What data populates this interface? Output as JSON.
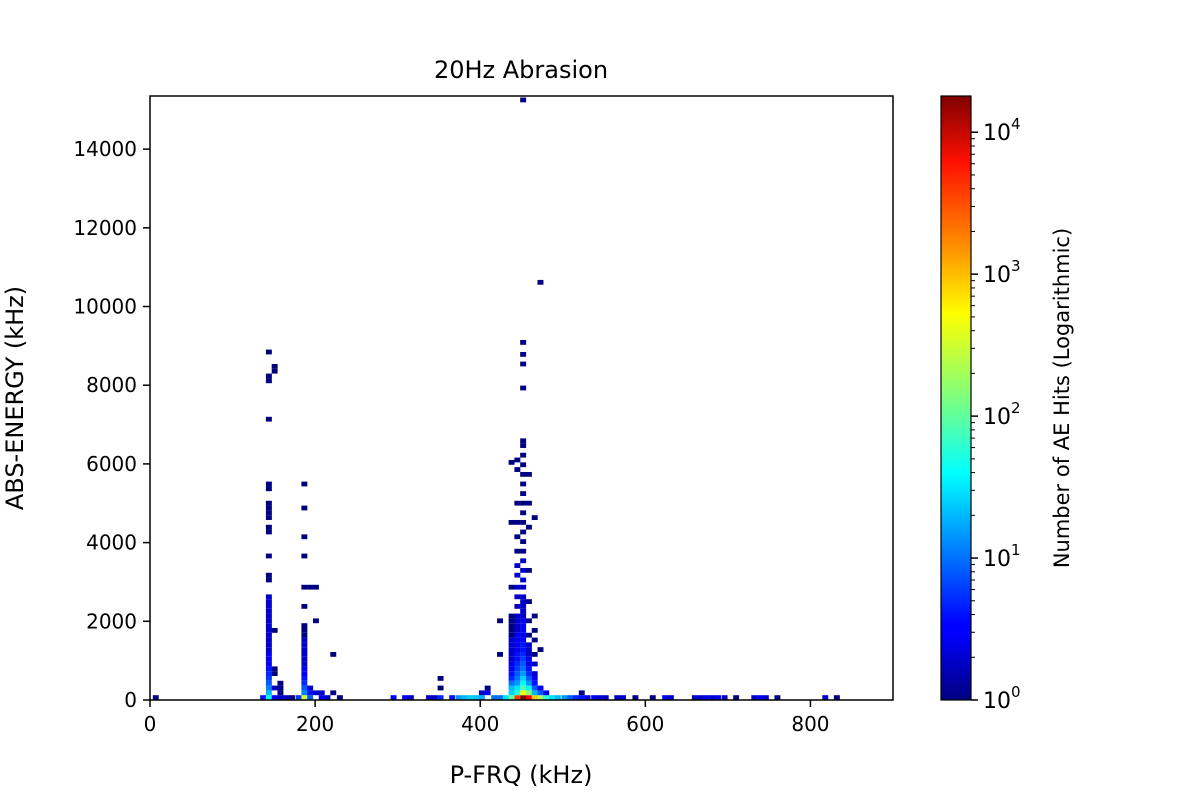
{
  "chart_data": {
    "type": "heatmap",
    "title": "20Hz Abrasion",
    "xlabel": "P-FRQ (kHz)",
    "ylabel": "ABS-ENERGY (kHz)",
    "xlim": [
      0,
      900
    ],
    "ylim": [
      0,
      15350
    ],
    "xticks": [
      0,
      200,
      400,
      600,
      800
    ],
    "yticks": [
      0,
      2000,
      4000,
      6000,
      8000,
      10000,
      12000,
      14000
    ],
    "grid": false,
    "bin_width_x": 7.2,
    "bin_height_y": 122,
    "colorscale": "jet",
    "colorbar": {
      "label": "Number of AE Hits (Logarithmic)",
      "scale": "log",
      "range": [
        1,
        18000
      ],
      "ticks": [
        {
          "value": 1,
          "base": "10",
          "exp": "0"
        },
        {
          "value": 10,
          "base": "10",
          "exp": "1"
        },
        {
          "value": 100,
          "base": "10",
          "exp": "2"
        },
        {
          "value": 1000,
          "base": "10",
          "exp": "3"
        },
        {
          "value": 10000,
          "base": "10",
          "exp": "4"
        }
      ]
    },
    "cells": [
      [
        7,
        61,
        1
      ],
      [
        137,
        61,
        4
      ],
      [
        144,
        61,
        40
      ],
      [
        151,
        61,
        3
      ],
      [
        158,
        61,
        2
      ],
      [
        144,
        183,
        20
      ],
      [
        144,
        305,
        12
      ],
      [
        144,
        427,
        8
      ],
      [
        144,
        549,
        6
      ],
      [
        144,
        671,
        5
      ],
      [
        144,
        793,
        4
      ],
      [
        144,
        915,
        3
      ],
      [
        144,
        1037,
        3
      ],
      [
        144,
        1159,
        3
      ],
      [
        144,
        1281,
        2
      ],
      [
        144,
        1403,
        2
      ],
      [
        144,
        1525,
        2
      ],
      [
        144,
        1647,
        2
      ],
      [
        144,
        1769,
        2
      ],
      [
        144,
        1891,
        2
      ],
      [
        144,
        2013,
        2
      ],
      [
        144,
        2135,
        2
      ],
      [
        144,
        2257,
        2
      ],
      [
        144,
        2379,
        2
      ],
      [
        144,
        2501,
        2
      ],
      [
        144,
        2623,
        2
      ],
      [
        144,
        3050,
        1
      ],
      [
        144,
        3172,
        1
      ],
      [
        144,
        3660,
        1
      ],
      [
        144,
        4270,
        1
      ],
      [
        144,
        4392,
        1
      ],
      [
        144,
        4636,
        1
      ],
      [
        144,
        4758,
        1
      ],
      [
        144,
        4880,
        1
      ],
      [
        144,
        5002,
        1
      ],
      [
        144,
        5368,
        1
      ],
      [
        144,
        5490,
        1
      ],
      [
        144,
        7136,
        1
      ],
      [
        144,
        8112,
        1
      ],
      [
        144,
        8234,
        1
      ],
      [
        144,
        8844,
        1
      ],
      [
        151,
        305,
        2
      ],
      [
        151,
        671,
        1
      ],
      [
        151,
        793,
        1
      ],
      [
        151,
        1769,
        1
      ],
      [
        151,
        8356,
        1
      ],
      [
        151,
        8478,
        1
      ],
      [
        158,
        183,
        1
      ],
      [
        158,
        305,
        1
      ],
      [
        158,
        427,
        1
      ],
      [
        165,
        61,
        2
      ],
      [
        172,
        61,
        1
      ],
      [
        180,
        61,
        6
      ],
      [
        187,
        61,
        300
      ],
      [
        194,
        61,
        8
      ],
      [
        187,
        183,
        12
      ],
      [
        187,
        305,
        8
      ],
      [
        187,
        427,
        5
      ],
      [
        187,
        549,
        4
      ],
      [
        187,
        671,
        3
      ],
      [
        187,
        793,
        3
      ],
      [
        187,
        915,
        2
      ],
      [
        187,
        1037,
        2
      ],
      [
        187,
        1159,
        2
      ],
      [
        187,
        1281,
        2
      ],
      [
        187,
        1403,
        2
      ],
      [
        187,
        1525,
        2
      ],
      [
        187,
        1647,
        1
      ],
      [
        187,
        1769,
        1
      ],
      [
        187,
        1891,
        1
      ],
      [
        187,
        2379,
        1
      ],
      [
        187,
        2867,
        1
      ],
      [
        187,
        3660,
        1
      ],
      [
        187,
        4148,
        1
      ],
      [
        187,
        4880,
        1
      ],
      [
        187,
        5490,
        1
      ],
      [
        194,
        183,
        4
      ],
      [
        194,
        305,
        2
      ],
      [
        194,
        2867,
        1
      ],
      [
        201,
        183,
        2
      ],
      [
        201,
        2867,
        1
      ],
      [
        201,
        2013,
        1
      ],
      [
        208,
        61,
        3
      ],
      [
        208,
        183,
        2
      ],
      [
        215,
        61,
        2
      ],
      [
        222,
        183,
        1
      ],
      [
        222,
        1159,
        1
      ],
      [
        230,
        61,
        1
      ],
      [
        295,
        61,
        3
      ],
      [
        309,
        61,
        3
      ],
      [
        316,
        61,
        2
      ],
      [
        338,
        61,
        2
      ],
      [
        345,
        61,
        2
      ],
      [
        352,
        305,
        1
      ],
      [
        352,
        549,
        1
      ],
      [
        352,
        61,
        5
      ],
      [
        366,
        61,
        4
      ],
      [
        374,
        61,
        15
      ],
      [
        381,
        61,
        20
      ],
      [
        388,
        61,
        25
      ],
      [
        395,
        61,
        22
      ],
      [
        402,
        61,
        18
      ],
      [
        402,
        183,
        2
      ],
      [
        409,
        183,
        3
      ],
      [
        409,
        305,
        1
      ],
      [
        417,
        61,
        10
      ],
      [
        424,
        61,
        10
      ],
      [
        424,
        1159,
        1
      ],
      [
        424,
        2013,
        1
      ],
      [
        431,
        61,
        30
      ],
      [
        438,
        61,
        100
      ],
      [
        438,
        183,
        25
      ],
      [
        438,
        305,
        20
      ],
      [
        438,
        427,
        10
      ],
      [
        438,
        549,
        5
      ],
      [
        438,
        671,
        4
      ],
      [
        438,
        793,
        3
      ],
      [
        438,
        915,
        3
      ],
      [
        438,
        1037,
        2
      ],
      [
        438,
        1159,
        2
      ],
      [
        438,
        1281,
        2
      ],
      [
        438,
        1403,
        2
      ],
      [
        438,
        1525,
        2
      ],
      [
        438,
        1647,
        1
      ],
      [
        438,
        1769,
        1
      ],
      [
        438,
        1891,
        1
      ],
      [
        438,
        2013,
        1
      ],
      [
        438,
        2135,
        1
      ],
      [
        438,
        2867,
        1
      ],
      [
        438,
        4514,
        1
      ],
      [
        438,
        6039,
        1
      ],
      [
        445,
        61,
        3000
      ],
      [
        445,
        183,
        60
      ],
      [
        445,
        305,
        30
      ],
      [
        445,
        427,
        15
      ],
      [
        445,
        549,
        10
      ],
      [
        445,
        671,
        8
      ],
      [
        445,
        793,
        6
      ],
      [
        445,
        915,
        5
      ],
      [
        445,
        1037,
        4
      ],
      [
        445,
        1159,
        4
      ],
      [
        445,
        1281,
        3
      ],
      [
        445,
        1403,
        3
      ],
      [
        445,
        1525,
        3
      ],
      [
        445,
        1647,
        3
      ],
      [
        445,
        1769,
        2
      ],
      [
        445,
        1891,
        2
      ],
      [
        445,
        2013,
        2
      ],
      [
        445,
        2135,
        2
      ],
      [
        445,
        2379,
        2
      ],
      [
        445,
        2623,
        2
      ],
      [
        445,
        2867,
        2
      ],
      [
        445,
        3172,
        2
      ],
      [
        445,
        3416,
        2
      ],
      [
        445,
        3782,
        1
      ],
      [
        445,
        4148,
        1
      ],
      [
        445,
        4514,
        1
      ],
      [
        445,
        5002,
        1
      ],
      [
        445,
        5856,
        1
      ],
      [
        445,
        6100,
        1
      ],
      [
        452,
        61,
        18000
      ],
      [
        452,
        183,
        400
      ],
      [
        452,
        305,
        80
      ],
      [
        452,
        427,
        40
      ],
      [
        452,
        549,
        25
      ],
      [
        452,
        671,
        15
      ],
      [
        452,
        793,
        10
      ],
      [
        452,
        915,
        8
      ],
      [
        452,
        1037,
        6
      ],
      [
        452,
        1159,
        5
      ],
      [
        452,
        1281,
        4
      ],
      [
        452,
        1403,
        4
      ],
      [
        452,
        1525,
        3
      ],
      [
        452,
        1647,
        3
      ],
      [
        452,
        1769,
        3
      ],
      [
        452,
        1891,
        3
      ],
      [
        452,
        2013,
        3
      ],
      [
        452,
        2135,
        2
      ],
      [
        452,
        2257,
        2
      ],
      [
        452,
        2379,
        2
      ],
      [
        452,
        2501,
        2
      ],
      [
        452,
        2623,
        2
      ],
      [
        452,
        2867,
        2
      ],
      [
        452,
        3050,
        2
      ],
      [
        452,
        3294,
        2
      ],
      [
        452,
        3538,
        2
      ],
      [
        452,
        3782,
        1
      ],
      [
        452,
        4026,
        1
      ],
      [
        452,
        4270,
        1
      ],
      [
        452,
        4514,
        1
      ],
      [
        452,
        4758,
        1
      ],
      [
        452,
        5002,
        1
      ],
      [
        452,
        5246,
        1
      ],
      [
        452,
        5490,
        1
      ],
      [
        452,
        5734,
        1
      ],
      [
        452,
        5978,
        1
      ],
      [
        452,
        6222,
        1
      ],
      [
        452,
        6466,
        1
      ],
      [
        452,
        6588,
        1
      ],
      [
        452,
        7929,
        1
      ],
      [
        452,
        8539,
        1
      ],
      [
        452,
        8783,
        1
      ],
      [
        452,
        9088,
        1
      ],
      [
        452,
        15250,
        1
      ],
      [
        459,
        61,
        6000
      ],
      [
        459,
        183,
        150
      ],
      [
        459,
        305,
        40
      ],
      [
        459,
        427,
        15
      ],
      [
        459,
        549,
        8
      ],
      [
        459,
        671,
        5
      ],
      [
        459,
        793,
        4
      ],
      [
        459,
        915,
        3
      ],
      [
        459,
        1037,
        3
      ],
      [
        459,
        1159,
        2
      ],
      [
        459,
        1281,
        2
      ],
      [
        459,
        1403,
        2
      ],
      [
        459,
        1647,
        1
      ],
      [
        459,
        2013,
        1
      ],
      [
        459,
        2501,
        1
      ],
      [
        459,
        3294,
        1
      ],
      [
        459,
        4392,
        1
      ],
      [
        459,
        5002,
        1
      ],
      [
        459,
        5734,
        1
      ],
      [
        466,
        61,
        800
      ],
      [
        466,
        183,
        20
      ],
      [
        466,
        305,
        8
      ],
      [
        466,
        427,
        4
      ],
      [
        466,
        549,
        3
      ],
      [
        466,
        671,
        2
      ],
      [
        466,
        915,
        2
      ],
      [
        466,
        1159,
        1
      ],
      [
        466,
        1525,
        1
      ],
      [
        466,
        1769,
        1
      ],
      [
        466,
        2135,
        1
      ],
      [
        466,
        4636,
        1
      ],
      [
        473,
        61,
        200
      ],
      [
        473,
        183,
        8
      ],
      [
        473,
        305,
        3
      ],
      [
        473,
        1281,
        1
      ],
      [
        473,
        10615,
        1
      ],
      [
        480,
        61,
        60
      ],
      [
        480,
        183,
        3
      ],
      [
        487,
        61,
        30
      ],
      [
        494,
        61,
        20
      ],
      [
        502,
        61,
        15
      ],
      [
        509,
        61,
        8
      ],
      [
        516,
        61,
        5
      ],
      [
        523,
        61,
        4
      ],
      [
        523,
        183,
        1
      ],
      [
        530,
        61,
        3
      ],
      [
        538,
        61,
        3
      ],
      [
        545,
        61,
        2
      ],
      [
        552,
        61,
        2
      ],
      [
        566,
        61,
        2
      ],
      [
        573,
        61,
        2
      ],
      [
        588,
        61,
        1
      ],
      [
        609,
        61,
        1
      ],
      [
        624,
        61,
        3
      ],
      [
        631,
        61,
        2
      ],
      [
        660,
        61,
        2
      ],
      [
        667,
        61,
        2
      ],
      [
        674,
        61,
        3
      ],
      [
        681,
        61,
        2
      ],
      [
        688,
        61,
        3
      ],
      [
        696,
        61,
        2
      ],
      [
        710,
        61,
        1
      ],
      [
        732,
        61,
        2
      ],
      [
        739,
        61,
        3
      ],
      [
        746,
        61,
        2
      ],
      [
        760,
        61,
        1
      ],
      [
        818,
        61,
        2
      ],
      [
        832,
        61,
        1
      ]
    ]
  }
}
